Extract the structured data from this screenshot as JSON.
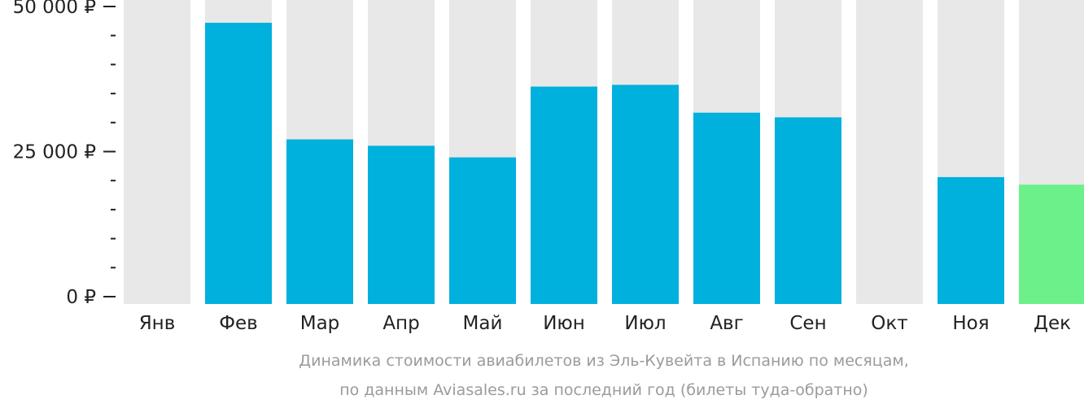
{
  "chart_data": {
    "type": "bar",
    "title": "Динамика стоимости авиабилетов из Эль-Кувейта в Испанию по месяцам,",
    "subtitle": "по данным Aviasales.ru за последний год (билеты туда-обратно)",
    "categories": [
      "Янв",
      "Фев",
      "Мар",
      "Апр",
      "Май",
      "Июн",
      "Июл",
      "Авг",
      "Сен",
      "Окт",
      "Ноя",
      "Дек"
    ],
    "values": [
      null,
      47200,
      27100,
      26000,
      24000,
      36200,
      36500,
      31700,
      30900,
      null,
      20600,
      19300
    ],
    "highlight_index": 11,
    "ylim": [
      0,
      50000
    ],
    "yticks": [
      {
        "value": 0,
        "label": "0 ₽"
      },
      {
        "value": 25000,
        "label": "25 000 ₽"
      },
      {
        "value": 50000,
        "label": "50 000 ₽"
      }
    ],
    "minor_tick_step": 5000,
    "grid": false,
    "colors": {
      "bar": "#00b0dd",
      "highlight": "#6cf08a",
      "background_bar": "#e8e8e8",
      "axis_text": "#222222",
      "caption": "#9b9b9b"
    }
  }
}
